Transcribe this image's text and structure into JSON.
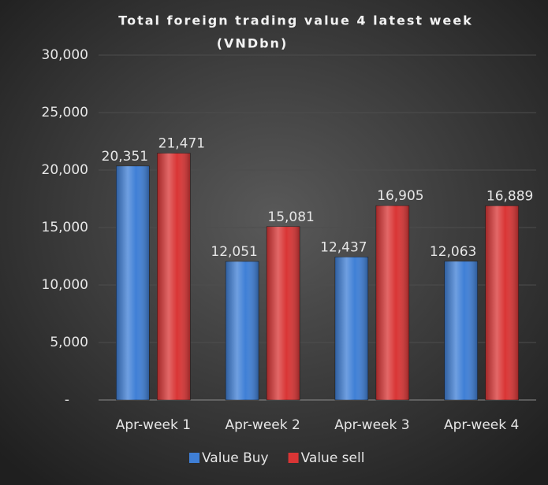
{
  "chart_data": {
    "type": "bar",
    "title": "Total foreign trading value 4 latest week",
    "subtitle": "(VNDbn)",
    "categories": [
      "Apr-week 1",
      "Apr-week 2",
      "Apr-week 3",
      "Apr-week 4"
    ],
    "series": [
      {
        "name": "Value Buy",
        "color": "#3f7fd6",
        "values": [
          20351,
          12051,
          12437,
          12063
        ],
        "value_labels": [
          "20,351",
          "12,051",
          "12,437",
          "12,063"
        ]
      },
      {
        "name": "Value sell",
        "color": "#d93535",
        "values": [
          21471,
          15081,
          16905,
          16889
        ],
        "value_labels": [
          "21,471",
          "15,081",
          "16,905",
          "16,889"
        ]
      }
    ],
    "ylim": [
      0,
      30000
    ],
    "yticks": [
      {
        "value": 0,
        "label": "-"
      },
      {
        "value": 5000,
        "label": "5,000"
      },
      {
        "value": 10000,
        "label": "10,000"
      },
      {
        "value": 15000,
        "label": "15,000"
      },
      {
        "value": 20000,
        "label": "20,000"
      },
      {
        "value": 25000,
        "label": "25,000"
      },
      {
        "value": 30000,
        "label": "30,000"
      }
    ],
    "grid": true,
    "legend": "bottom"
  }
}
